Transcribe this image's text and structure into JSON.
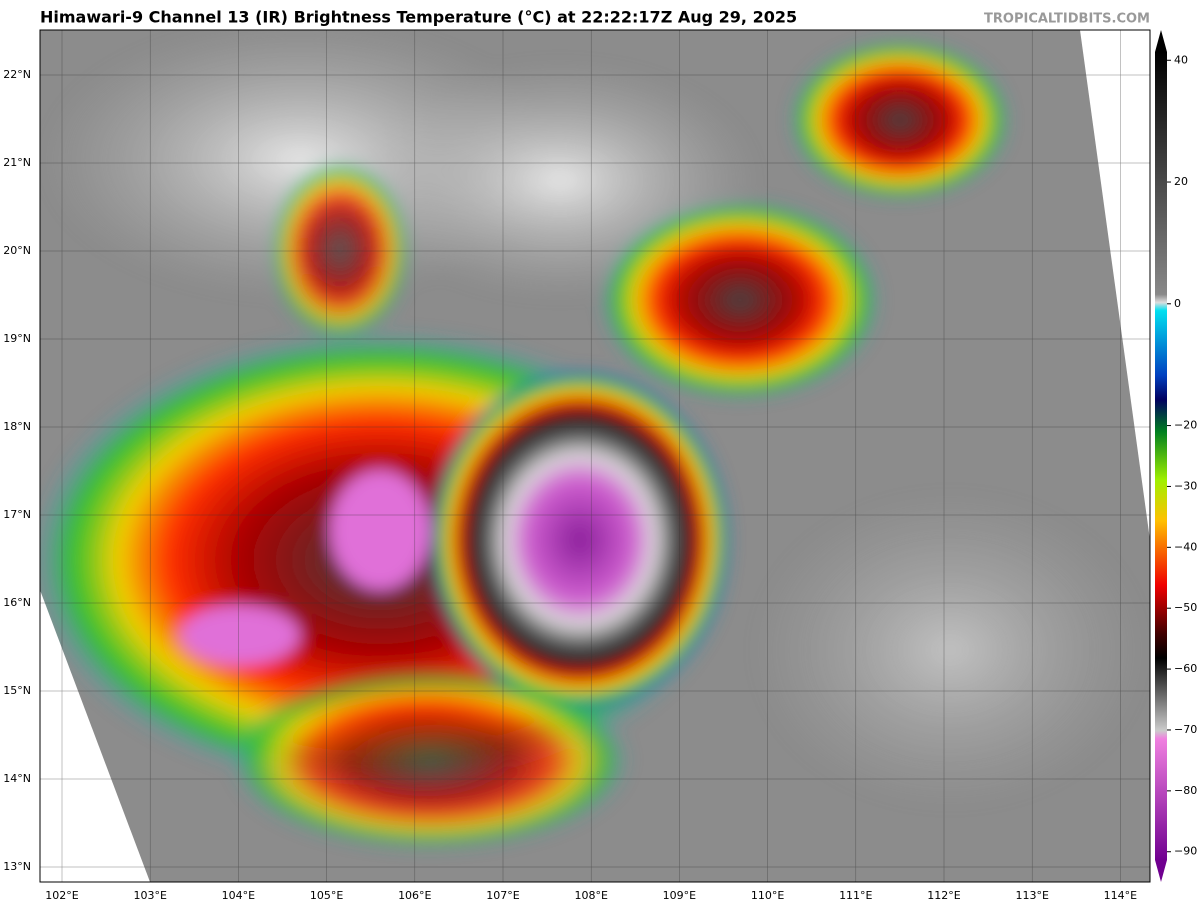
{
  "header": {
    "title": "Himawari-9 Channel 13 (IR) Brightness Temperature (°C) at 22:22:17Z Aug 29, 2025",
    "credit": "TROPICALTIDBITS.COM"
  },
  "map": {
    "lat_labels": [
      "22°N",
      "21°N",
      "20°N",
      "19°N",
      "18°N",
      "17°N",
      "16°N",
      "15°N",
      "14°N",
      "13°N"
    ],
    "lon_labels": [
      "102°E",
      "103°E",
      "104°E",
      "105°E",
      "106°E",
      "107°E",
      "108°E",
      "109°E",
      "110°E",
      "111°E",
      "112°E",
      "113°E",
      "114°E"
    ]
  },
  "colorbar": {
    "lim": [
      -93,
      43
    ],
    "ticks": [
      40,
      20,
      0,
      {
        "value": -20,
        "label": "−20"
      },
      {
        "value": -30,
        "label": "−30"
      },
      {
        "value": -40,
        "label": "−40"
      },
      {
        "value": -50,
        "label": "−50"
      },
      {
        "value": -60,
        "label": "−60"
      },
      {
        "value": -70,
        "label": "−70"
      },
      {
        "value": -80,
        "label": "−80"
      },
      {
        "value": -90,
        "label": "−90"
      }
    ]
  }
}
